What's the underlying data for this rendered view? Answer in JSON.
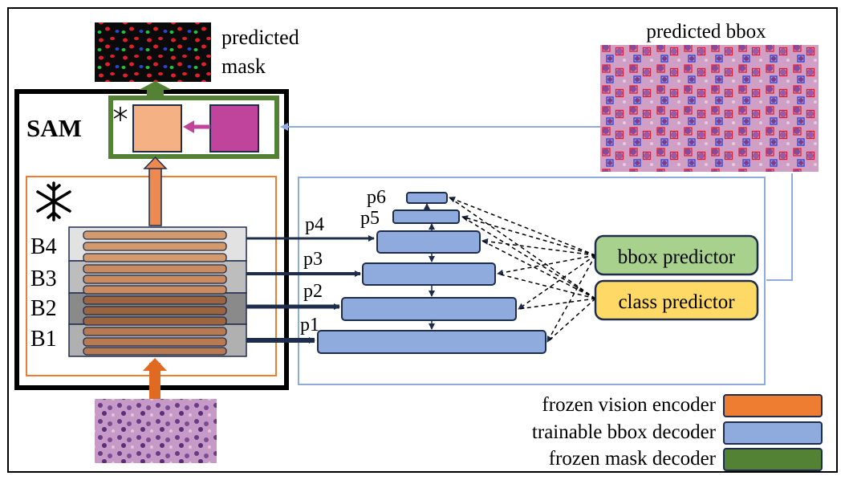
{
  "sam": {
    "label": "SAM"
  },
  "blocks": [
    "B4",
    "B3",
    "B2",
    "B1"
  ],
  "pyramid": [
    "p1",
    "p2",
    "p3",
    "p4",
    "p5",
    "p6"
  ],
  "heads": {
    "bbox": "bbox predictor",
    "class": "class predictor"
  },
  "outputs": {
    "mask_line1": "predicted",
    "mask_line2": "mask",
    "bbox": "predicted bbox"
  },
  "legend": [
    {
      "label": "frozen vision encoder",
      "color": "#ee7d31"
    },
    {
      "label": "trainable bbox decoder",
      "color": "#8faadc"
    },
    {
      "label": "frozen mask decoder",
      "color": "#548235"
    }
  ],
  "colors": {
    "encoder_frame": "#ed7d31",
    "bbox_decoder": "#8faadc",
    "mask_decoder": "#548235",
    "bbox_head": "#a9d18e",
    "class_head": "#ffd966",
    "prompt_encoder": "#f4b183",
    "mask_module": "#c0449b",
    "frozen_icon": "snowflake-icon"
  }
}
